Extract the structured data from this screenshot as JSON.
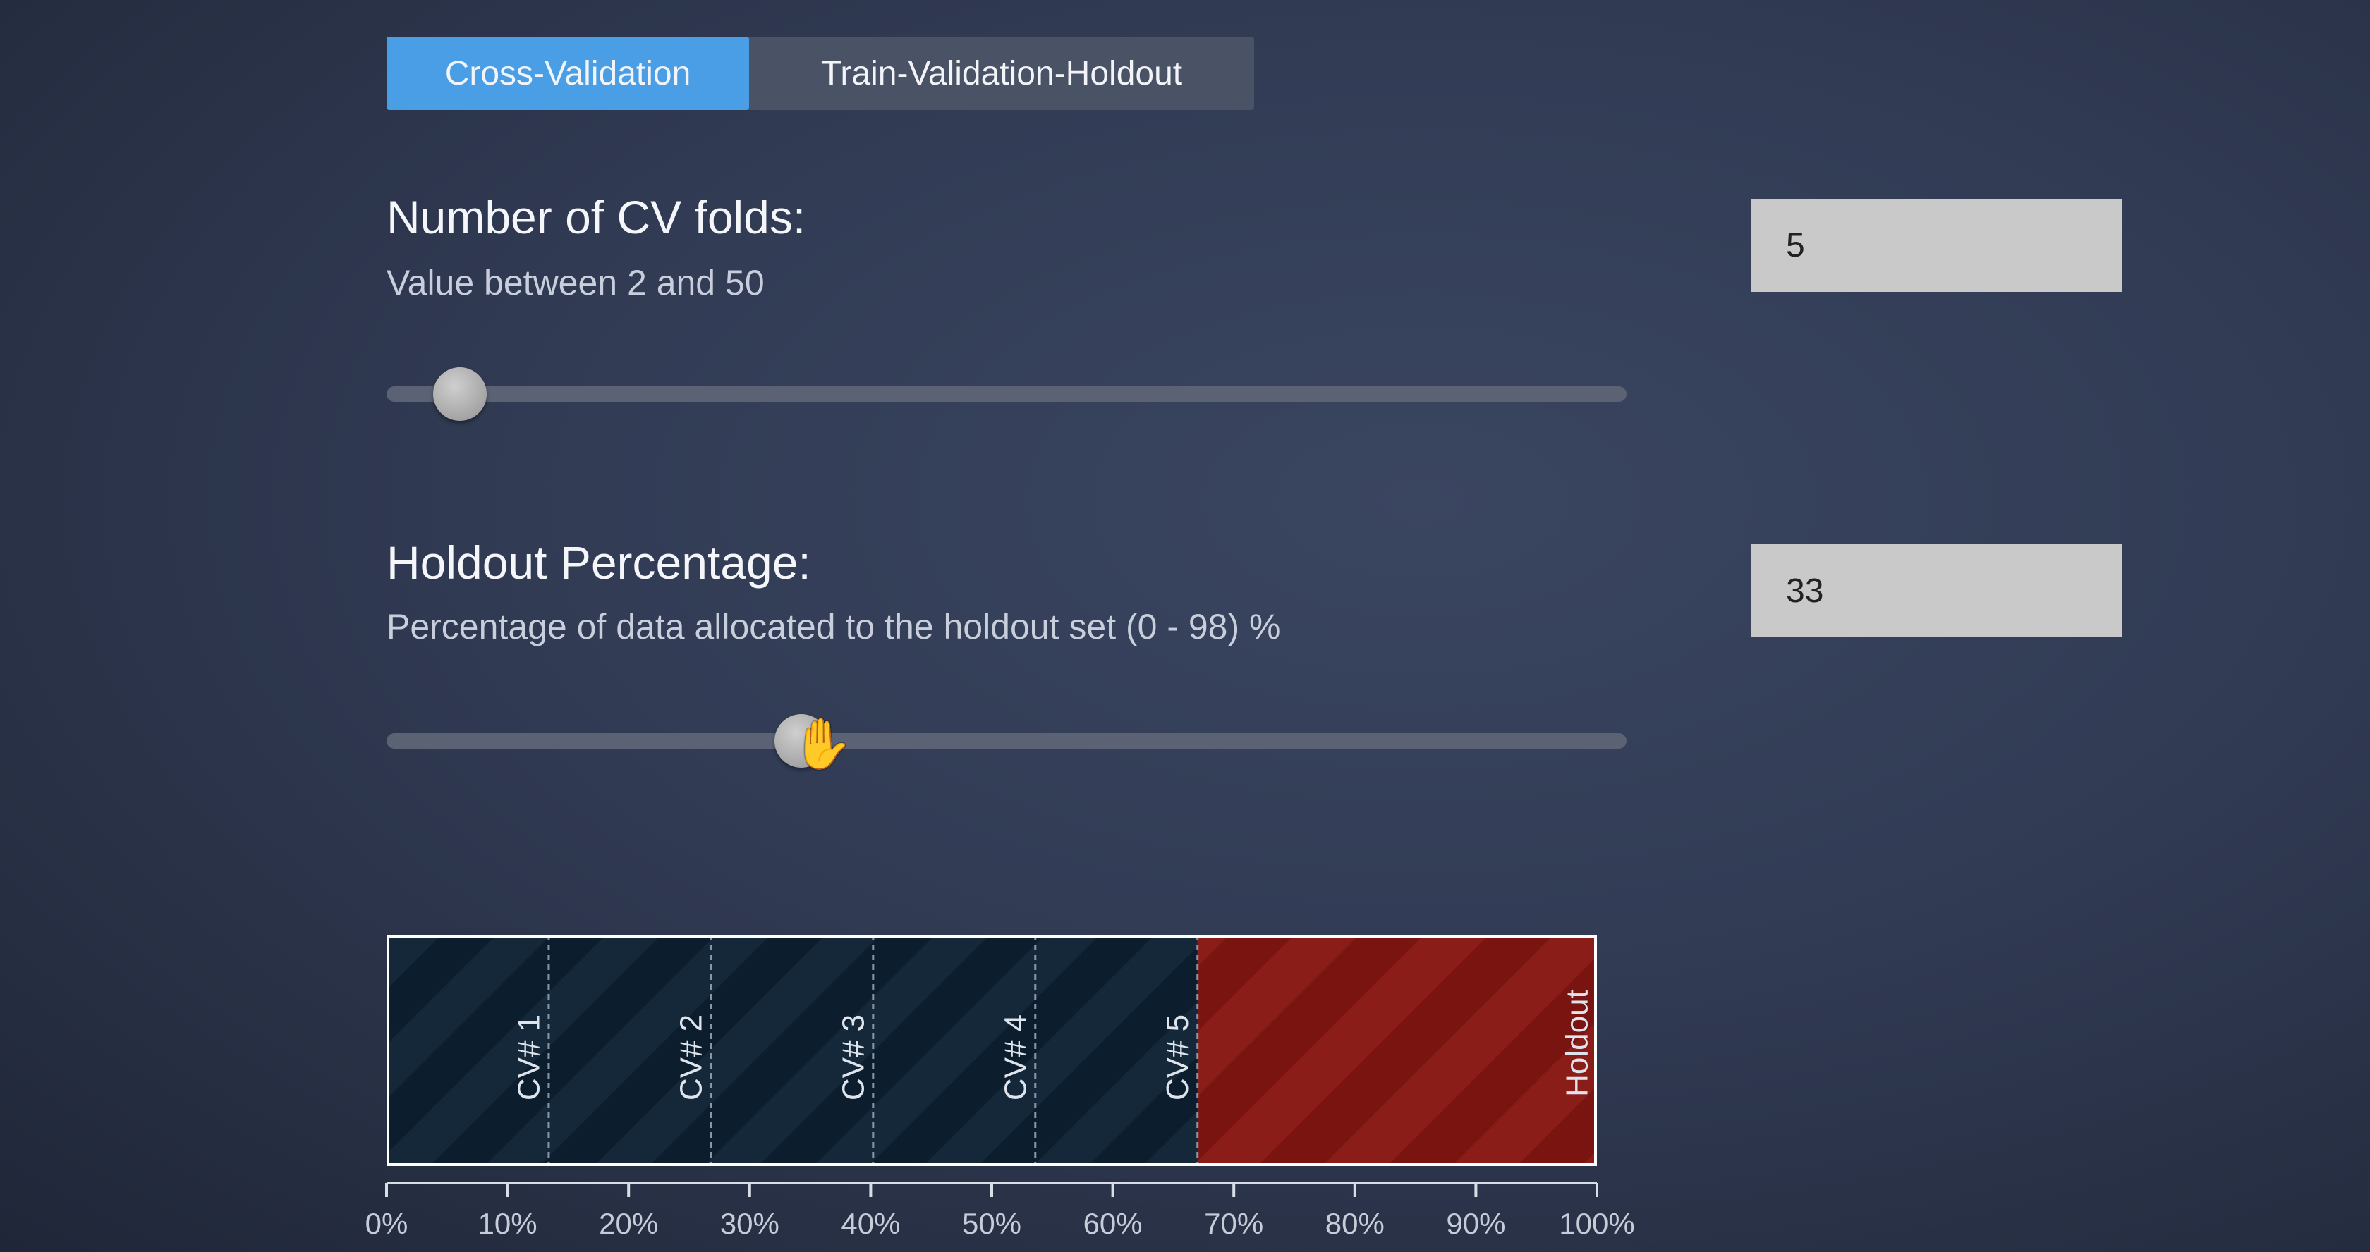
{
  "tabs": [
    {
      "label": "Cross-Validation",
      "active": true
    },
    {
      "label": "Train-Validation-Holdout",
      "active": false
    }
  ],
  "cv_folds": {
    "title": "Number of CV folds:",
    "subtitle": "Value between 2 and 50",
    "value": "5",
    "min": 2,
    "max": 50
  },
  "holdout": {
    "title": "Holdout Percentage:",
    "subtitle": "Percentage of data allocated to the holdout set (0 - 98) %",
    "value": "33",
    "min": 0,
    "max": 98
  },
  "chart_data": {
    "type": "bar",
    "segments": [
      {
        "label": "CV# 1",
        "start": 0,
        "end": 13.4,
        "kind": "cv"
      },
      {
        "label": "CV# 2",
        "start": 13.4,
        "end": 26.8,
        "kind": "cv"
      },
      {
        "label": "CV# 3",
        "start": 26.8,
        "end": 40.2,
        "kind": "cv"
      },
      {
        "label": "CV# 4",
        "start": 40.2,
        "end": 53.6,
        "kind": "cv"
      },
      {
        "label": "CV# 5",
        "start": 53.6,
        "end": 67,
        "kind": "cv"
      },
      {
        "label": "Holdout",
        "start": 67,
        "end": 100,
        "kind": "holdout"
      }
    ],
    "x_ticks": [
      "0%",
      "10%",
      "20%",
      "30%",
      "40%",
      "50%",
      "60%",
      "70%",
      "80%",
      "90%",
      "100%"
    ],
    "xlim": [
      0,
      100
    ],
    "colors": {
      "cv": "#0c1d2d",
      "cv_stripe": "#14283a",
      "holdout": "#7a1410",
      "holdout_stripe": "#8a1d17",
      "divider": "#8a95a5",
      "frame": "#ffffff",
      "axis": "#d8dde6"
    }
  },
  "colors": {
    "active_tab": "#4a9ee6",
    "inactive_tab": "#4a5366",
    "slider_track": "#5a6274",
    "value_box": "#c9c9c9"
  },
  "icons": {
    "cursor": "hand-cursor-icon"
  }
}
